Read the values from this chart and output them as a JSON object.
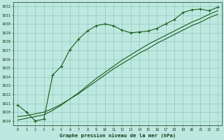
{
  "title": "Graphe pression niveau de la mer (hPa)",
  "bg_color": "#bde8e0",
  "grid_color": "#90c8c0",
  "line_color": "#1a5c1a",
  "xlim": [
    -0.5,
    23.5
  ],
  "ylim": [
    1018.5,
    1032.5
  ],
  "yticks": [
    1019,
    1020,
    1021,
    1022,
    1023,
    1024,
    1025,
    1026,
    1027,
    1028,
    1029,
    1030,
    1031,
    1032
  ],
  "xticks": [
    0,
    1,
    2,
    3,
    4,
    5,
    6,
    7,
    8,
    9,
    10,
    11,
    12,
    13,
    14,
    15,
    16,
    17,
    18,
    19,
    20,
    21,
    22,
    23
  ],
  "series1_x": [
    0,
    1,
    2,
    3,
    4,
    5,
    6,
    7,
    8,
    9,
    10,
    11,
    12,
    13,
    14,
    15,
    16,
    17,
    18,
    19,
    20,
    21,
    22,
    23
  ],
  "series1_y": [
    1020.8,
    1020.0,
    1019.0,
    1019.2,
    1024.2,
    1025.2,
    1027.1,
    1028.3,
    1029.2,
    1029.8,
    1030.0,
    1029.8,
    1029.3,
    1029.0,
    1029.1,
    1029.2,
    1029.5,
    1030.0,
    1030.5,
    1031.3,
    1031.6,
    1031.7,
    1031.5,
    1031.9
  ],
  "series2_x": [
    0,
    1,
    2,
    3,
    4,
    5,
    6,
    7,
    8,
    9,
    10,
    11,
    12,
    13,
    14,
    15,
    16,
    17,
    18,
    19,
    20,
    21,
    22,
    23
  ],
  "series2_y": [
    1019.1,
    1019.3,
    1019.5,
    1019.7,
    1020.2,
    1020.8,
    1021.5,
    1022.2,
    1023.0,
    1023.8,
    1024.5,
    1025.2,
    1025.9,
    1026.5,
    1027.1,
    1027.7,
    1028.2,
    1028.7,
    1029.2,
    1029.7,
    1030.2,
    1030.6,
    1031.1,
    1031.5
  ],
  "series3_x": [
    0,
    1,
    2,
    3,
    4,
    5,
    6,
    7,
    8,
    9,
    10,
    11,
    12,
    13,
    14,
    15,
    16,
    17,
    18,
    19,
    20,
    21,
    22,
    23
  ],
  "series3_y": [
    1019.5,
    1019.6,
    1019.8,
    1020.0,
    1020.4,
    1020.9,
    1021.5,
    1022.1,
    1022.8,
    1023.5,
    1024.2,
    1024.9,
    1025.5,
    1026.1,
    1026.7,
    1027.2,
    1027.8,
    1028.3,
    1028.8,
    1029.3,
    1029.8,
    1030.2,
    1030.7,
    1031.1
  ]
}
